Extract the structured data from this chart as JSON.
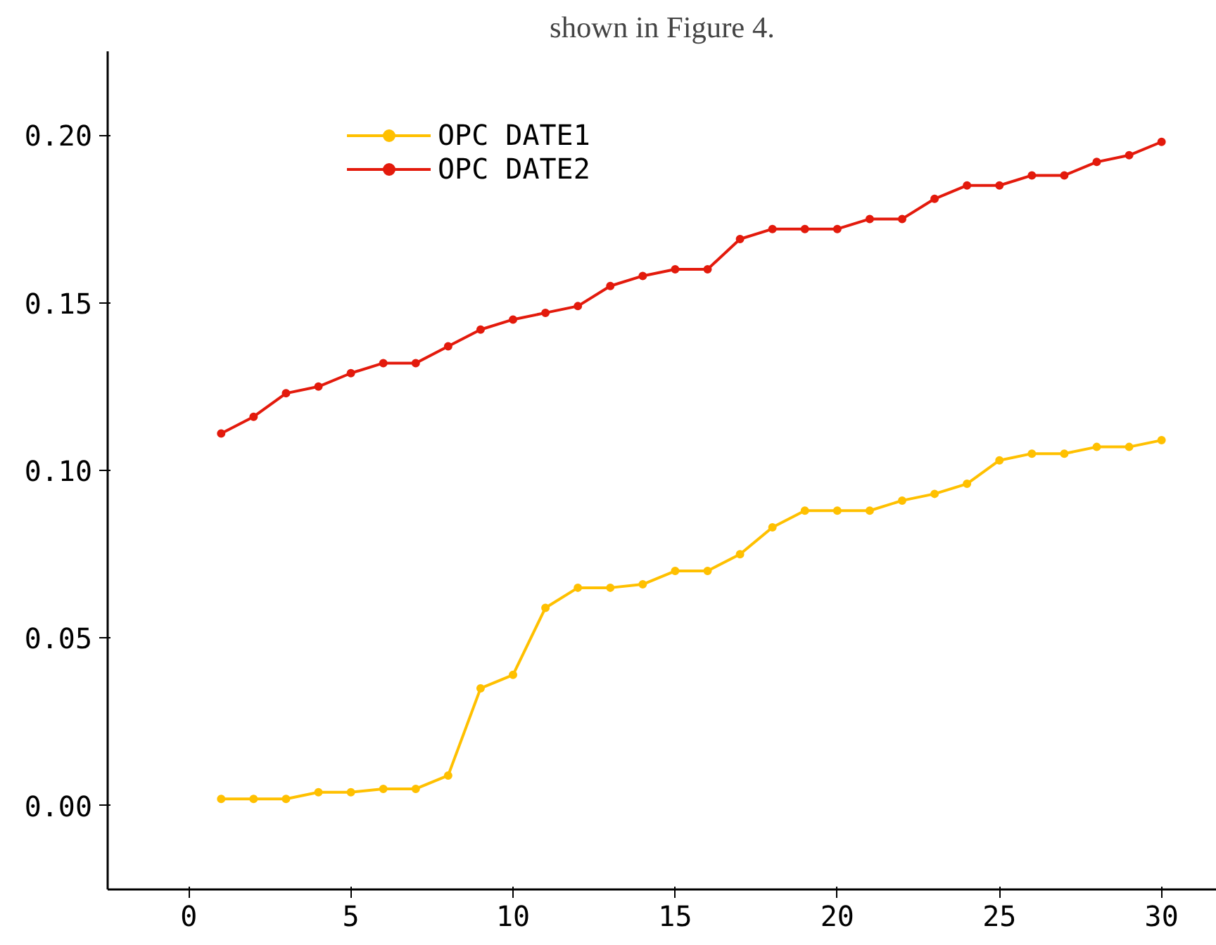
{
  "chart_data": {
    "type": "line",
    "annotations": [
      "shown in Figure 4."
    ],
    "x": [
      1,
      2,
      3,
      4,
      5,
      6,
      7,
      8,
      9,
      10,
      11,
      12,
      13,
      14,
      15,
      16,
      17,
      18,
      19,
      20,
      21,
      22,
      23,
      24,
      25,
      26,
      27,
      28,
      29,
      30
    ],
    "series": [
      {
        "name": "OPC DATE1",
        "color": "#ffc000",
        "values": [
          0.002,
          0.002,
          0.002,
          0.004,
          0.004,
          0.005,
          0.005,
          0.009,
          0.035,
          0.039,
          0.059,
          0.065,
          0.065,
          0.066,
          0.07,
          0.07,
          0.075,
          0.083,
          0.088,
          0.088,
          0.088,
          0.091,
          0.093,
          0.096,
          0.103,
          0.105,
          0.105,
          0.107,
          0.107,
          0.109
        ]
      },
      {
        "name": "OPC DATE2",
        "color": "#e31a0c",
        "values": [
          0.111,
          0.116,
          0.123,
          0.125,
          0.129,
          0.132,
          0.132,
          0.137,
          0.142,
          0.145,
          0.147,
          0.149,
          0.155,
          0.158,
          0.16,
          0.16,
          0.169,
          0.172,
          0.172,
          0.172,
          0.175,
          0.175,
          0.181,
          0.185,
          0.185,
          0.188,
          0.188,
          0.192,
          0.194,
          0.198
        ]
      }
    ],
    "xlim": [
      -2.5,
      31.7
    ],
    "ylim": [
      -0.025,
      0.225
    ],
    "xticks": [
      0,
      5,
      10,
      15,
      20,
      25,
      30
    ],
    "yticks": [
      {
        "value": 0,
        "label": "0.00"
      },
      {
        "value": 0.05,
        "label": "0.05"
      },
      {
        "value": 0.1,
        "label": "0.10"
      },
      {
        "value": 0.15,
        "label": "0.15"
      },
      {
        "value": 0.2,
        "label": "0.20"
      }
    ],
    "grid": false,
    "legend": "top left",
    "marker": "circle",
    "line_style": "solid"
  }
}
